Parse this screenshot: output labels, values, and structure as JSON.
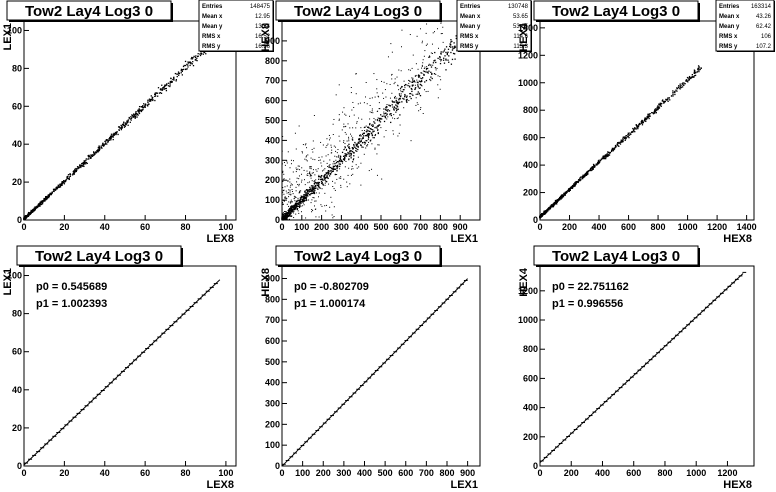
{
  "chart_data": [
    {
      "type": "scatter",
      "title": "Tow2 Lay4 Log3 0",
      "xlabel": "LEX8",
      "ylabel": "LEX1",
      "xlim": [
        0,
        105
      ],
      "ylim": [
        0,
        105
      ],
      "x_ticks": [
        "0",
        "20",
        "40",
        "60",
        "80",
        "100"
      ],
      "y_ticks": [
        "0",
        "20",
        "40",
        "60",
        "80",
        "100"
      ],
      "stats": [
        {
          "label": "Entries",
          "value": "148475"
        },
        {
          "label": "Mean x",
          "value": "12.95"
        },
        {
          "label": "Mean y",
          "value": "13.54"
        },
        {
          "label": "RMS x",
          "value": "16.52"
        },
        {
          "label": "RMS y",
          "value": "16.56"
        }
      ],
      "trend": {
        "slope": 1.0,
        "intercept": 0.5,
        "x_from": 0,
        "x_to": 95,
        "spread": 0.9
      },
      "outliers": 0
    },
    {
      "type": "scatter",
      "title": "Tow2 Lay4 Log3 0",
      "xlabel": "LEX1",
      "ylabel": "HEX8",
      "xlim": [
        0,
        1000
      ],
      "ylim": [
        0,
        1000
      ],
      "x_ticks": [
        "0",
        "100",
        "200",
        "300",
        "400",
        "500",
        "600",
        "700",
        "800",
        "900"
      ],
      "y_ticks": [
        "0",
        "100",
        "200",
        "300",
        "400",
        "500",
        "600",
        "700",
        "800",
        "900"
      ],
      "stats": [
        {
          "label": "Entries",
          "value": "130748"
        },
        {
          "label": "Mean x",
          "value": "53.65"
        },
        {
          "label": "Mean y",
          "value": "53.65"
        },
        {
          "label": "RMS x",
          "value": "114.6"
        },
        {
          "label": "RMS y",
          "value": "115.3"
        }
      ],
      "trend": {
        "slope": 1.0,
        "intercept": 0,
        "x_from": 0,
        "x_to": 960,
        "spread": 25
      },
      "outliers": 700
    },
    {
      "type": "scatter",
      "title": "Tow2 Lay4 Log3 0",
      "xlabel": "HEX8",
      "ylabel": "HEX4",
      "xlim": [
        0,
        1450
      ],
      "ylim": [
        0,
        1450
      ],
      "x_ticks": [
        "0",
        "200",
        "400",
        "600",
        "800",
        "1000",
        "1200",
        "1400"
      ],
      "y_ticks": [
        "0",
        "200",
        "400",
        "600",
        "800",
        "1000",
        "1200",
        "1400"
      ],
      "stats": [
        {
          "label": "Entries",
          "value": "163314"
        },
        {
          "label": "Mean x",
          "value": "43.26"
        },
        {
          "label": "Mean y",
          "value": "62.42"
        },
        {
          "label": "RMS x",
          "value": "106"
        },
        {
          "label": "RMS y",
          "value": "107.2"
        }
      ],
      "trend": {
        "slope": 1.0,
        "intercept": 22,
        "x_from": 0,
        "x_to": 1100,
        "spread": 10
      },
      "outliers": 0
    },
    {
      "type": "line",
      "title": "Tow2 Lay4 Log3 0",
      "xlabel": "LEX8",
      "ylabel": "LEX1",
      "xlim": [
        0,
        105
      ],
      "ylim": [
        0,
        105
      ],
      "x_ticks": [
        "0",
        "20",
        "40",
        "60",
        "80",
        "100"
      ],
      "y_ticks": [
        "0",
        "20",
        "40",
        "60",
        "80",
        "100"
      ],
      "fit": {
        "p0_label": "p0 = 0.545689",
        "p1_label": "p1 = 1.002393",
        "p0": 0.545689,
        "p1": 1.002393,
        "x_from": 0,
        "x_to": 97
      },
      "profile": {
        "bin_width": 2,
        "x_from": 0,
        "x_to": 96
      }
    },
    {
      "type": "line",
      "title": "Tow2 Lay4 Log3 0",
      "xlabel": "LEX1",
      "ylabel": "HEX8",
      "xlim": [
        0,
        960
      ],
      "ylim": [
        0,
        960
      ],
      "x_ticks": [
        "0",
        "100",
        "200",
        "300",
        "400",
        "500",
        "600",
        "700",
        "800",
        "900"
      ],
      "y_ticks": [
        "0",
        "100",
        "200",
        "300",
        "400",
        "500",
        "600",
        "700",
        "800",
        "900"
      ],
      "fit": {
        "p0_label": "p0 = -0.802709",
        "p1_label": "p1 = 1.000174",
        "p0": -0.802709,
        "p1": 1.000174,
        "x_from": 0,
        "x_to": 900
      },
      "profile": {
        "bin_width": 18,
        "x_from": 0,
        "x_to": 900
      }
    },
    {
      "type": "line",
      "title": "Tow2 Lay4 Log3 0",
      "xlabel": "HEX8",
      "ylabel": "HEX4",
      "xlim": [
        0,
        1370
      ],
      "ylim": [
        0,
        1370
      ],
      "x_ticks": [
        "0",
        "200",
        "400",
        "600",
        "800",
        "1000",
        "1200"
      ],
      "y_ticks": [
        "0",
        "200",
        "400",
        "600",
        "800",
        "1000",
        "1200"
      ],
      "fit": {
        "p0_label": "p0 = 22.751162",
        "p1_label": "p1 = 0.996556",
        "p0": 22.751162,
        "p1": 0.996556,
        "x_from": 0,
        "x_to": 1300
      },
      "profile": {
        "bin_width": 24,
        "x_from": 0,
        "x_to": 1300
      }
    }
  ]
}
